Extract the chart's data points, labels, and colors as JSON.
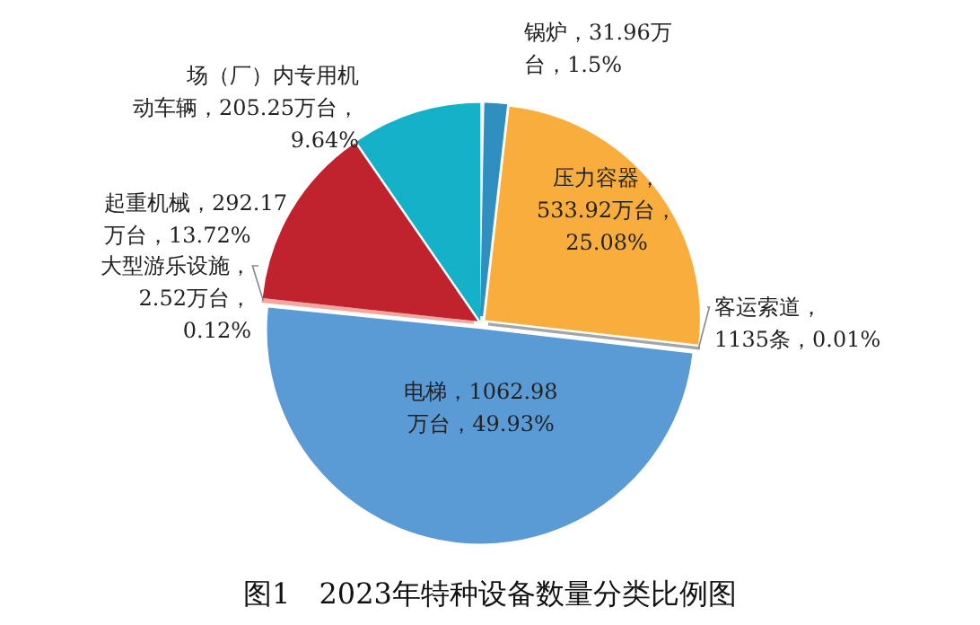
{
  "chart_data": {
    "type": "pie",
    "title": "图1　2023年特种设备数量分类比例图",
    "categories": [
      "锅炉",
      "压力容器",
      "客运索道",
      "电梯",
      "大型游乐设施",
      "起重机械",
      "场（厂）内专用机动车辆"
    ],
    "values": [
      1.5,
      25.08,
      0.01,
      49.93,
      0.12,
      13.72,
      9.64
    ],
    "value_labels": [
      "，31.96万台，1.5%",
      "，533.92万台，25.08%",
      "，1135条，0.01%",
      "，1062.98万台，49.93%",
      "，2.52万台，0.12%",
      "，292.17万台，13.72%",
      "，205.25万台，9.64%"
    ],
    "colors": [
      "#2e8fc0",
      "#f9ad3c",
      "#a5a5a5",
      "#5b9bd5",
      "#f4a7a0",
      "#c1232e",
      "#15b1c9"
    ]
  }
}
